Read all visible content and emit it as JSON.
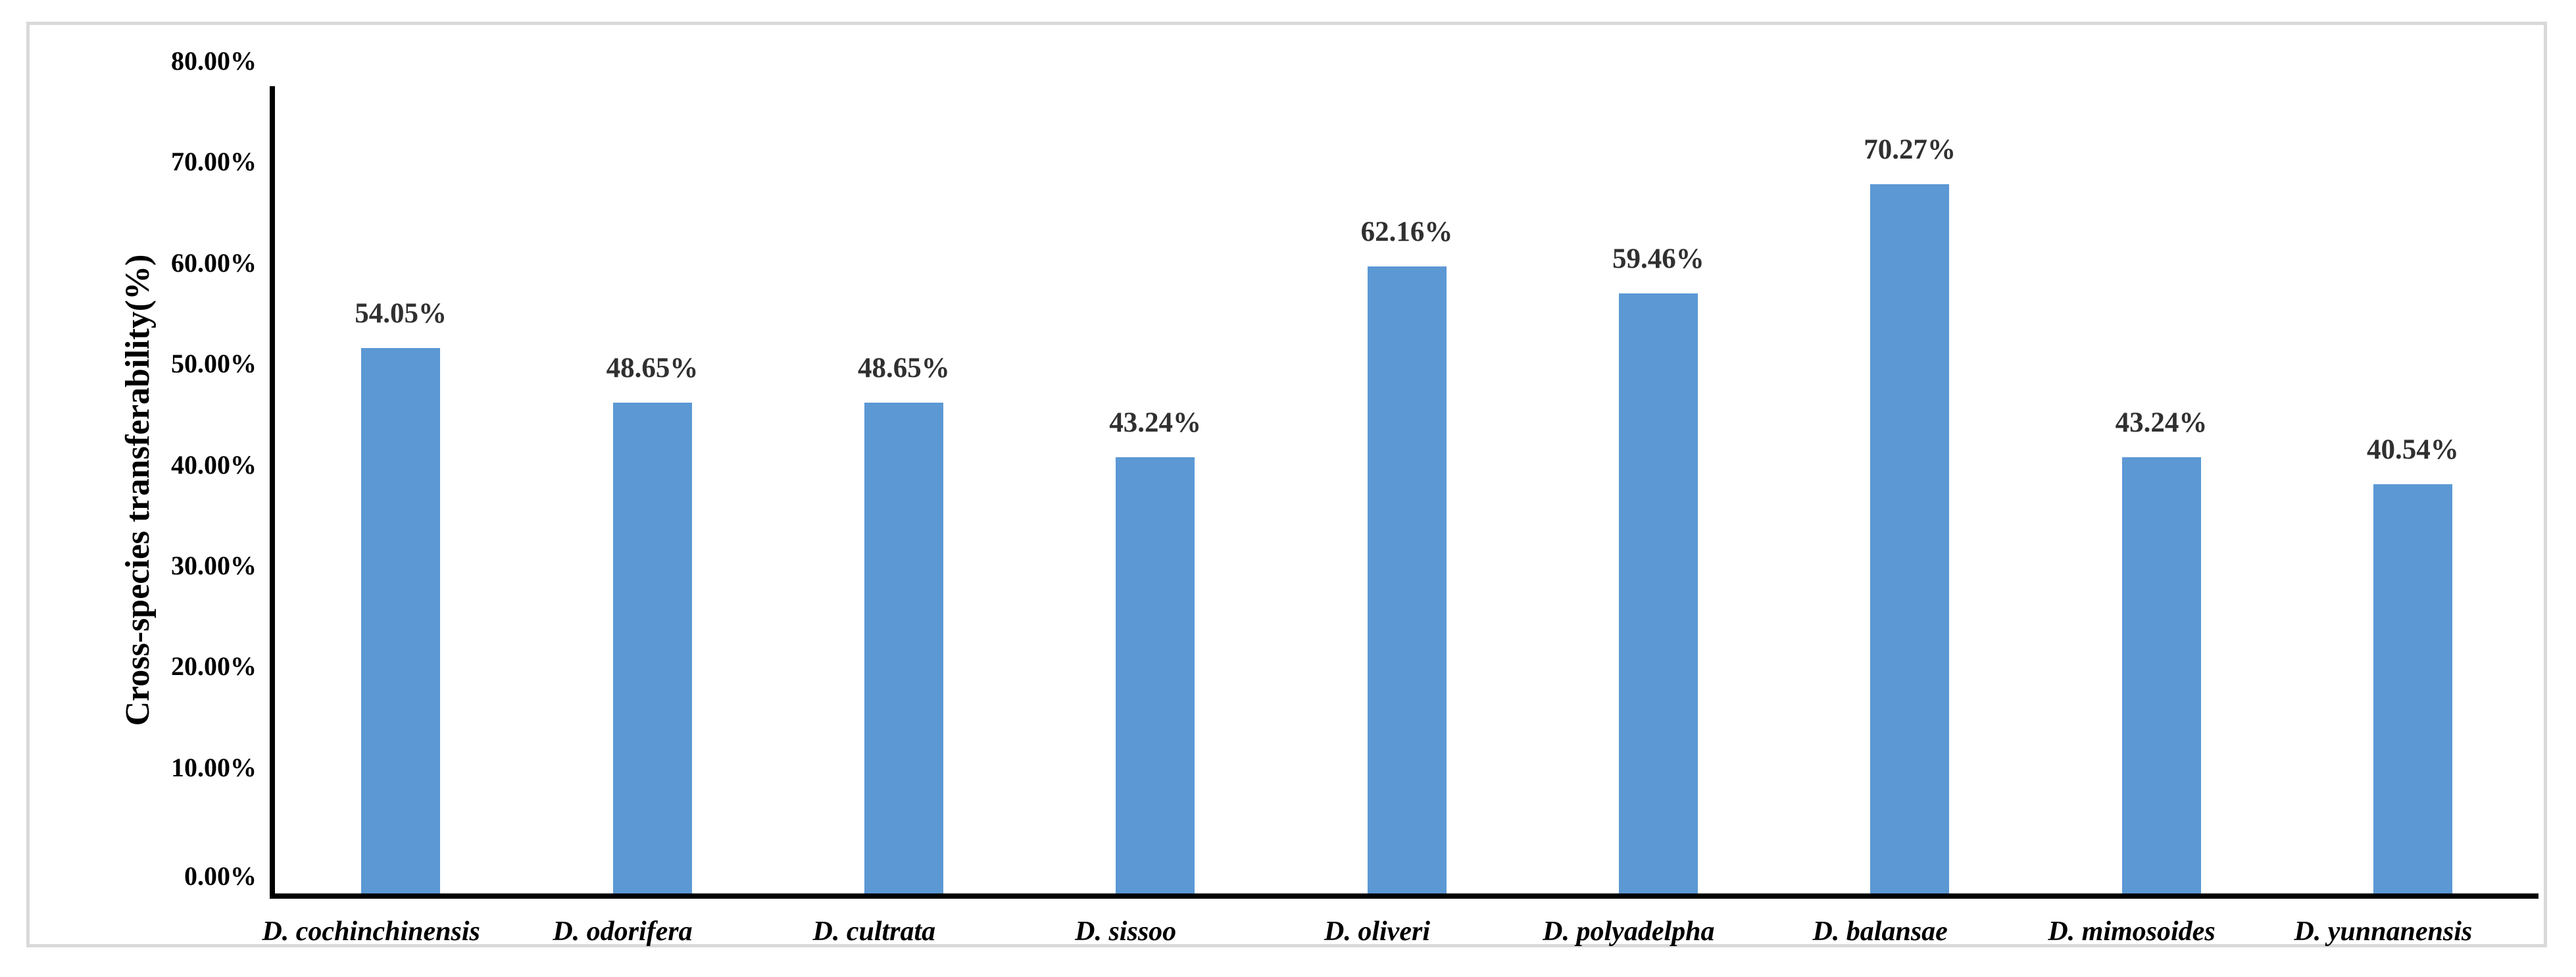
{
  "chart_data": {
    "type": "bar",
    "categories": [
      "D. cochinchinensis",
      "D. odorifera",
      "D. cultrata",
      "D. sissoo",
      "D. oliveri",
      "D. polyadelpha",
      "D. balansae",
      "D. mimosoides",
      "D. yunnanensis"
    ],
    "values": [
      54.05,
      48.65,
      48.65,
      43.24,
      62.16,
      59.46,
      70.27,
      43.24,
      40.54
    ],
    "value_labels": [
      "54.05%",
      "48.65%",
      "48.65%",
      "43.24%",
      "62.16%",
      "59.46%",
      "70.27%",
      "43.24%",
      "40.54%"
    ],
    "title": "",
    "xlabel": "",
    "ylabel": "Cross-species transferability(%)",
    "ylim": [
      0,
      80
    ],
    "ytick_step": 10,
    "ytick_labels": [
      "0.00%",
      "10.00%",
      "20.00%",
      "30.00%",
      "40.00%",
      "50.00%",
      "60.00%",
      "70.00%",
      "80.00%"
    ],
    "grid": false,
    "legend": "none"
  },
  "colors": {
    "bar": "#5B98D4",
    "axis": "#000000",
    "frame_border": "#d9d9d9",
    "value_label_text": "#303030",
    "tick_text": "#000000"
  }
}
